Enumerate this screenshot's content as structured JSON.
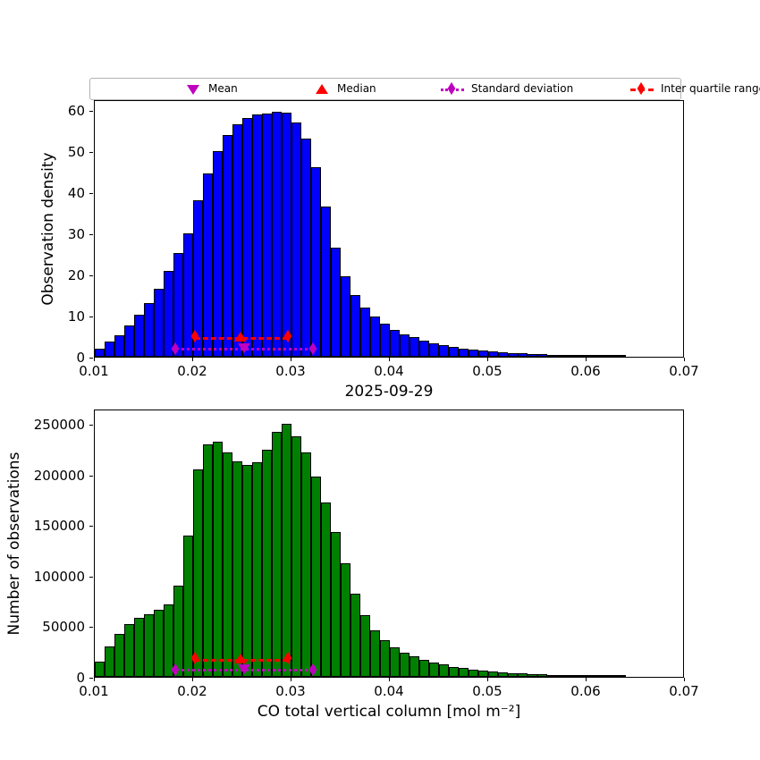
{
  "figure": {
    "background": "#ffffff"
  },
  "legend": {
    "border_color": "#b3b3b3",
    "items": [
      {
        "label": "Mean",
        "marker": "triangle-down",
        "color": "#bf00bf",
        "line": "none"
      },
      {
        "label": "Median",
        "marker": "triangle-up",
        "color": "#ff0000",
        "line": "none"
      },
      {
        "label": "Standard deviation",
        "marker": "diamond",
        "color": "#bf00bf",
        "line": "dotted"
      },
      {
        "label": "Inter quartile range",
        "marker": "diamond",
        "color": "#ff0000",
        "line": "dashed"
      }
    ]
  },
  "chart_data": [
    {
      "type": "bar",
      "subtype": "histogram",
      "title": "",
      "xlabel": "",
      "ylabel": "Observation density",
      "bar_color": "#0000ff",
      "bar_edge_color": "#000000",
      "grid": false,
      "legend_position": "top",
      "bin_start": 0.01,
      "bin_width": 0.001,
      "xlim": [
        0.01,
        0.07
      ],
      "ylim": [
        0,
        62.6
      ],
      "xticks": [
        0.01,
        0.02,
        0.03,
        0.04,
        0.05,
        0.06,
        0.07
      ],
      "xtick_labels": [
        "0.01",
        "0.02",
        "0.03",
        "0.04",
        "0.05",
        "0.06",
        "0.07"
      ],
      "yticks": [
        0,
        10,
        20,
        30,
        40,
        50,
        60
      ],
      "ytick_labels": [
        "0",
        "10",
        "20",
        "30",
        "40",
        "50",
        "60"
      ],
      "values": [
        2.0,
        3.6,
        5.3,
        7.6,
        10.2,
        13.0,
        16.5,
        20.8,
        25.2,
        30.0,
        38.0,
        44.5,
        50.0,
        54.0,
        56.5,
        58.0,
        58.8,
        59.2,
        59.5,
        59.3,
        57.0,
        53.0,
        46.0,
        36.5,
        26.5,
        19.5,
        15.0,
        12.0,
        9.8,
        8.0,
        6.5,
        5.5,
        4.7,
        4.0,
        3.3,
        2.8,
        2.4,
        2.0,
        1.7,
        1.45,
        1.25,
        1.05,
        0.9,
        0.78,
        0.67,
        0.58,
        0.5,
        0.43,
        0.37,
        0.32,
        0.27,
        0.23,
        0.2,
        0.17
      ],
      "stats": {
        "mean_x": 0.0252,
        "median_x": 0.0248,
        "std_lo_x": 0.0182,
        "std_hi_x": 0.0322,
        "iqr_lo_x": 0.0202,
        "iqr_hi_x": 0.0296,
        "iqr_line_y": 5.3,
        "std_line_y": 2.7,
        "mean_color": "#bf00bf",
        "median_color": "#ff0000",
        "std_color": "#bf00bf",
        "iqr_color": "#ff0000"
      }
    },
    {
      "type": "bar",
      "subtype": "histogram",
      "title": "2025-09-29",
      "xlabel": "CO total vertical column [mol m⁻²]",
      "ylabel": "Number of observations",
      "bar_color": "#008000",
      "bar_edge_color": "#000000",
      "grid": false,
      "legend_position": "none",
      "bin_start": 0.01,
      "bin_width": 0.001,
      "xlim": [
        0.01,
        0.07
      ],
      "ylim": [
        0,
        265000
      ],
      "xticks": [
        0.01,
        0.02,
        0.03,
        0.04,
        0.05,
        0.06,
        0.07
      ],
      "xtick_labels": [
        "0.01",
        "0.02",
        "0.03",
        "0.04",
        "0.05",
        "0.06",
        "0.07"
      ],
      "yticks": [
        0,
        50000,
        100000,
        150000,
        200000,
        250000
      ],
      "ytick_labels": [
        "0",
        "50000",
        "100000",
        "150000",
        "200000",
        "250000"
      ],
      "values": [
        15000,
        30000,
        42000,
        52000,
        58000,
        62000,
        66000,
        72000,
        90000,
        140000,
        205000,
        230000,
        232000,
        222000,
        213000,
        209000,
        212000,
        224000,
        242000,
        250000,
        238000,
        222000,
        198000,
        172000,
        143000,
        112000,
        82000,
        61000,
        46000,
        36000,
        29000,
        24000,
        20000,
        17000,
        14000,
        12000,
        10000,
        8500,
        7000,
        6000,
        5000,
        4300,
        3700,
        3200,
        2700,
        2300,
        2000,
        1700,
        1500,
        1300,
        1100,
        950,
        800,
        700
      ],
      "stats": {
        "mean_x": 0.0252,
        "median_x": 0.0248,
        "std_lo_x": 0.0182,
        "std_hi_x": 0.0322,
        "iqr_lo_x": 0.0202,
        "iqr_hi_x": 0.0296,
        "iqr_line_y": 19000,
        "std_line_y": 10000,
        "mean_color": "#bf00bf",
        "median_color": "#ff0000",
        "std_color": "#bf00bf",
        "iqr_color": "#ff0000"
      }
    }
  ]
}
